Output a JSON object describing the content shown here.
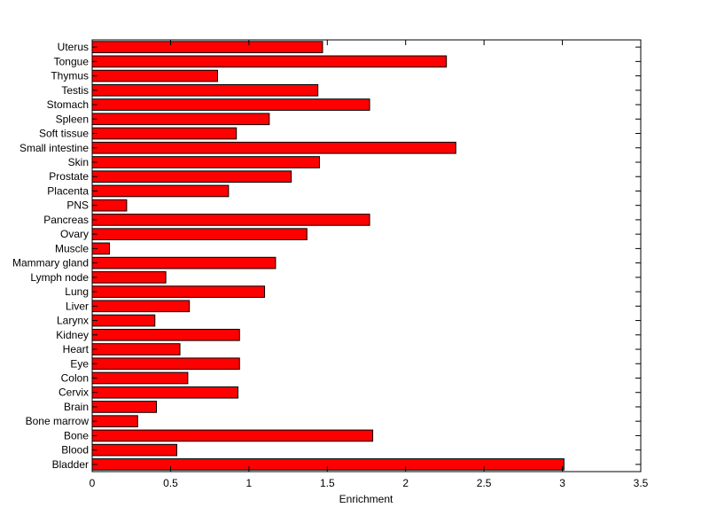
{
  "chart_data": {
    "type": "bar",
    "orientation": "horizontal",
    "title": "",
    "xlabel": "Enrichment",
    "ylabel": "",
    "xlim": [
      0,
      3.5
    ],
    "xticks": [
      0,
      0.5,
      1,
      1.5,
      2,
      2.5,
      3,
      3.5
    ],
    "xtick_labels": [
      "0",
      "0.5",
      "1",
      "1.5",
      "2",
      "2.5",
      "3",
      "3.5"
    ],
    "grid": false,
    "legend": "none",
    "bar_color": "#ff0000",
    "categories": [
      "Bladder",
      "Blood",
      "Bone",
      "Bone marrow",
      "Brain",
      "Cervix",
      "Colon",
      "Eye",
      "Heart",
      "Kidney",
      "Larynx",
      "Liver",
      "Lung",
      "Lymph node",
      "Mammary gland",
      "Muscle",
      "Ovary",
      "Pancreas",
      "PNS",
      "Placenta",
      "Prostate",
      "Skin",
      "Small intestine",
      "Soft tissue",
      "Spleen",
      "Stomach",
      "Testis",
      "Thymus",
      "Tongue",
      "Uterus"
    ],
    "values": [
      3.01,
      0.54,
      1.79,
      0.29,
      0.41,
      0.93,
      0.61,
      0.94,
      0.56,
      0.94,
      0.4,
      0.62,
      1.1,
      0.47,
      1.17,
      0.11,
      1.37,
      1.77,
      0.22,
      0.87,
      1.27,
      1.45,
      2.32,
      0.92,
      1.13,
      1.77,
      1.44,
      0.8,
      2.26,
      1.47
    ]
  }
}
